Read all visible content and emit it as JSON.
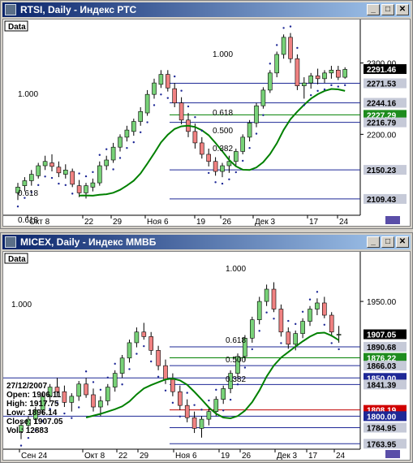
{
  "window_rtsi": {
    "title": "RTSI, Daily - Индекс РТС"
  },
  "window_micex": {
    "title": "MICEX, Daily - Индекс ММВБ"
  },
  "buttons": {
    "minimize": "_",
    "maximize": "□",
    "close": "✕"
  },
  "colors": {
    "up": "#78d278",
    "down": "#f08282",
    "fib": "#1e2896",
    "psar": "#1e2896",
    "ma": "#008000",
    "last": "#000000"
  },
  "chart_data": [
    {
      "type": "candlestick",
      "title": "RTSI, Daily - Индекс РТС",
      "legend": "Data",
      "x_labels": [
        "Окт 8",
        "22",
        "29",
        "Ноя 6",
        "19",
        "26",
        "Дек 3",
        "17",
        "24"
      ],
      "ylim": [
        2090,
        2345
      ],
      "y_ticks": [
        "2300.00",
        "2200.00"
      ],
      "price_tags": [
        {
          "label": "2291.46",
          "kind": "last"
        },
        {
          "label": "2271.53",
          "kind": "fib"
        },
        {
          "label": "2244.16",
          "kind": "fib"
        },
        {
          "label": "2227.29",
          "kind": "ma"
        },
        {
          "label": "2216.79",
          "kind": "fib"
        },
        {
          "label": "2150.23",
          "kind": "fib"
        },
        {
          "label": "2109.43",
          "kind": "fib"
        }
      ],
      "fib_labels": [
        "1.000",
        "1.000",
        "0.618",
        "0.500",
        "0.382",
        "0.618",
        "0.618"
      ],
      "candles": [
        [
          2118,
          2132,
          2108,
          2126
        ],
        [
          2128,
          2140,
          2120,
          2135
        ],
        [
          2135,
          2150,
          2128,
          2144
        ],
        [
          2142,
          2160,
          2138,
          2156
        ],
        [
          2156,
          2170,
          2150,
          2162
        ],
        [
          2160,
          2172,
          2148,
          2155
        ],
        [
          2154,
          2162,
          2140,
          2146
        ],
        [
          2144,
          2158,
          2138,
          2150
        ],
        [
          2148,
          2152,
          2126,
          2130
        ],
        [
          2128,
          2136,
          2112,
          2118
        ],
        [
          2118,
          2132,
          2110,
          2128
        ],
        [
          2126,
          2138,
          2120,
          2132
        ],
        [
          2132,
          2162,
          2128,
          2156
        ],
        [
          2156,
          2170,
          2150,
          2164
        ],
        [
          2164,
          2188,
          2160,
          2182
        ],
        [
          2182,
          2200,
          2176,
          2196
        ],
        [
          2196,
          2212,
          2190,
          2206
        ],
        [
          2204,
          2222,
          2198,
          2218
        ],
        [
          2218,
          2238,
          2212,
          2232
        ],
        [
          2230,
          2262,
          2226,
          2256
        ],
        [
          2256,
          2278,
          2250,
          2272
        ],
        [
          2270,
          2290,
          2265,
          2284
        ],
        [
          2284,
          2290,
          2260,
          2265
        ],
        [
          2264,
          2272,
          2238,
          2244
        ],
        [
          2244,
          2252,
          2214,
          2220
        ],
        [
          2220,
          2230,
          2196,
          2204
        ],
        [
          2204,
          2215,
          2180,
          2188
        ],
        [
          2188,
          2196,
          2166,
          2172
        ],
        [
          2172,
          2180,
          2155,
          2162
        ],
        [
          2162,
          2168,
          2142,
          2148
        ],
        [
          2148,
          2160,
          2140,
          2156
        ],
        [
          2156,
          2170,
          2146,
          2162
        ],
        [
          2162,
          2180,
          2156,
          2176
        ],
        [
          2176,
          2200,
          2172,
          2196
        ],
        [
          2196,
          2220,
          2190,
          2216
        ],
        [
          2216,
          2244,
          2210,
          2240
        ],
        [
          2240,
          2266,
          2236,
          2262
        ],
        [
          2262,
          2290,
          2258,
          2286
        ],
        [
          2286,
          2316,
          2280,
          2312
        ],
        [
          2312,
          2340,
          2306,
          2336
        ],
        [
          2336,
          2342,
          2300,
          2306
        ],
        [
          2306,
          2312,
          2262,
          2268
        ],
        [
          2268,
          2280,
          2250,
          2272
        ],
        [
          2272,
          2286,
          2264,
          2282
        ],
        [
          2282,
          2292,
          2270,
          2278
        ],
        [
          2278,
          2290,
          2272,
          2286
        ],
        [
          2286,
          2296,
          2278,
          2290
        ],
        [
          2290,
          2296,
          2276,
          2280
        ],
        [
          2280,
          2294,
          2278,
          2291
        ]
      ]
    },
    {
      "type": "candlestick",
      "title": "MICEX, Daily - Индекс ММВБ",
      "legend": "Data",
      "x_labels": [
        "Сен 24",
        "Окт 8",
        "22",
        "29",
        "Ноя 6",
        "19",
        "26",
        "Дек 3",
        "17",
        "24"
      ],
      "ylim": [
        1760,
        2000
      ],
      "y_ticks": [
        "1950.00"
      ],
      "price_tags": [
        {
          "label": "1907.05",
          "kind": "last"
        },
        {
          "label": "1890.68",
          "kind": "fib"
        },
        {
          "label": "1876.22",
          "kind": "ma"
        },
        {
          "label": "1866.03",
          "kind": "fib"
        },
        {
          "label": "1850.00",
          "kind": "line"
        },
        {
          "label": "1841.39",
          "kind": "fib"
        },
        {
          "label": "1808.19",
          "kind": "red"
        },
        {
          "label": "1800.00",
          "kind": "line"
        },
        {
          "label": "1784.95",
          "kind": "fib"
        },
        {
          "label": "1763.95",
          "kind": "fib"
        }
      ],
      "fib_labels": [
        "1.000",
        "1.000",
        "0.618",
        "0.500",
        "0.382"
      ],
      "info": {
        "date": "27/12/2007",
        "open": "Open: 1906.11",
        "high": "High: 1917.75",
        "low": "Low: 1896.14",
        "close": "Close: 1907.05",
        "vol": "Vol.: 12883"
      },
      "candles": [
        [
          1780,
          1792,
          1770,
          1788
        ],
        [
          1788,
          1800,
          1780,
          1796
        ],
        [
          1796,
          1812,
          1790,
          1808
        ],
        [
          1808,
          1830,
          1802,
          1826
        ],
        [
          1826,
          1842,
          1818,
          1838
        ],
        [
          1838,
          1850,
          1826,
          1832
        ],
        [
          1832,
          1840,
          1812,
          1818
        ],
        [
          1818,
          1830,
          1806,
          1826
        ],
        [
          1826,
          1846,
          1820,
          1842
        ],
        [
          1842,
          1850,
          1824,
          1828
        ],
        [
          1828,
          1836,
          1806,
          1812
        ],
        [
          1812,
          1826,
          1800,
          1820
        ],
        [
          1820,
          1842,
          1814,
          1838
        ],
        [
          1838,
          1860,
          1832,
          1856
        ],
        [
          1856,
          1880,
          1850,
          1876
        ],
        [
          1876,
          1900,
          1870,
          1896
        ],
        [
          1896,
          1916,
          1890,
          1910
        ],
        [
          1910,
          1922,
          1900,
          1904
        ],
        [
          1904,
          1910,
          1880,
          1886
        ],
        [
          1886,
          1892,
          1860,
          1866
        ],
        [
          1866,
          1874,
          1842,
          1848
        ],
        [
          1848,
          1856,
          1826,
          1832
        ],
        [
          1832,
          1840,
          1808,
          1814
        ],
        [
          1814,
          1822,
          1792,
          1798
        ],
        [
          1798,
          1806,
          1778,
          1784
        ],
        [
          1784,
          1800,
          1772,
          1796
        ],
        [
          1796,
          1812,
          1788,
          1806
        ],
        [
          1806,
          1826,
          1800,
          1822
        ],
        [
          1822,
          1840,
          1816,
          1836
        ],
        [
          1836,
          1860,
          1830,
          1856
        ],
        [
          1856,
          1882,
          1850,
          1878
        ],
        [
          1878,
          1906,
          1872,
          1902
        ],
        [
          1902,
          1930,
          1896,
          1926
        ],
        [
          1926,
          1956,
          1920,
          1950
        ],
        [
          1950,
          1972,
          1944,
          1966
        ],
        [
          1966,
          1975,
          1936,
          1940
        ],
        [
          1940,
          1946,
          1904,
          1910
        ],
        [
          1910,
          1916,
          1888,
          1894
        ],
        [
          1894,
          1912,
          1886,
          1908
        ],
        [
          1908,
          1928,
          1902,
          1924
        ],
        [
          1924,
          1944,
          1918,
          1940
        ],
        [
          1940,
          1954,
          1932,
          1948
        ],
        [
          1948,
          1956,
          1928,
          1932
        ],
        [
          1932,
          1936,
          1904,
          1910
        ],
        [
          1906,
          1918,
          1896,
          1907
        ]
      ]
    }
  ]
}
